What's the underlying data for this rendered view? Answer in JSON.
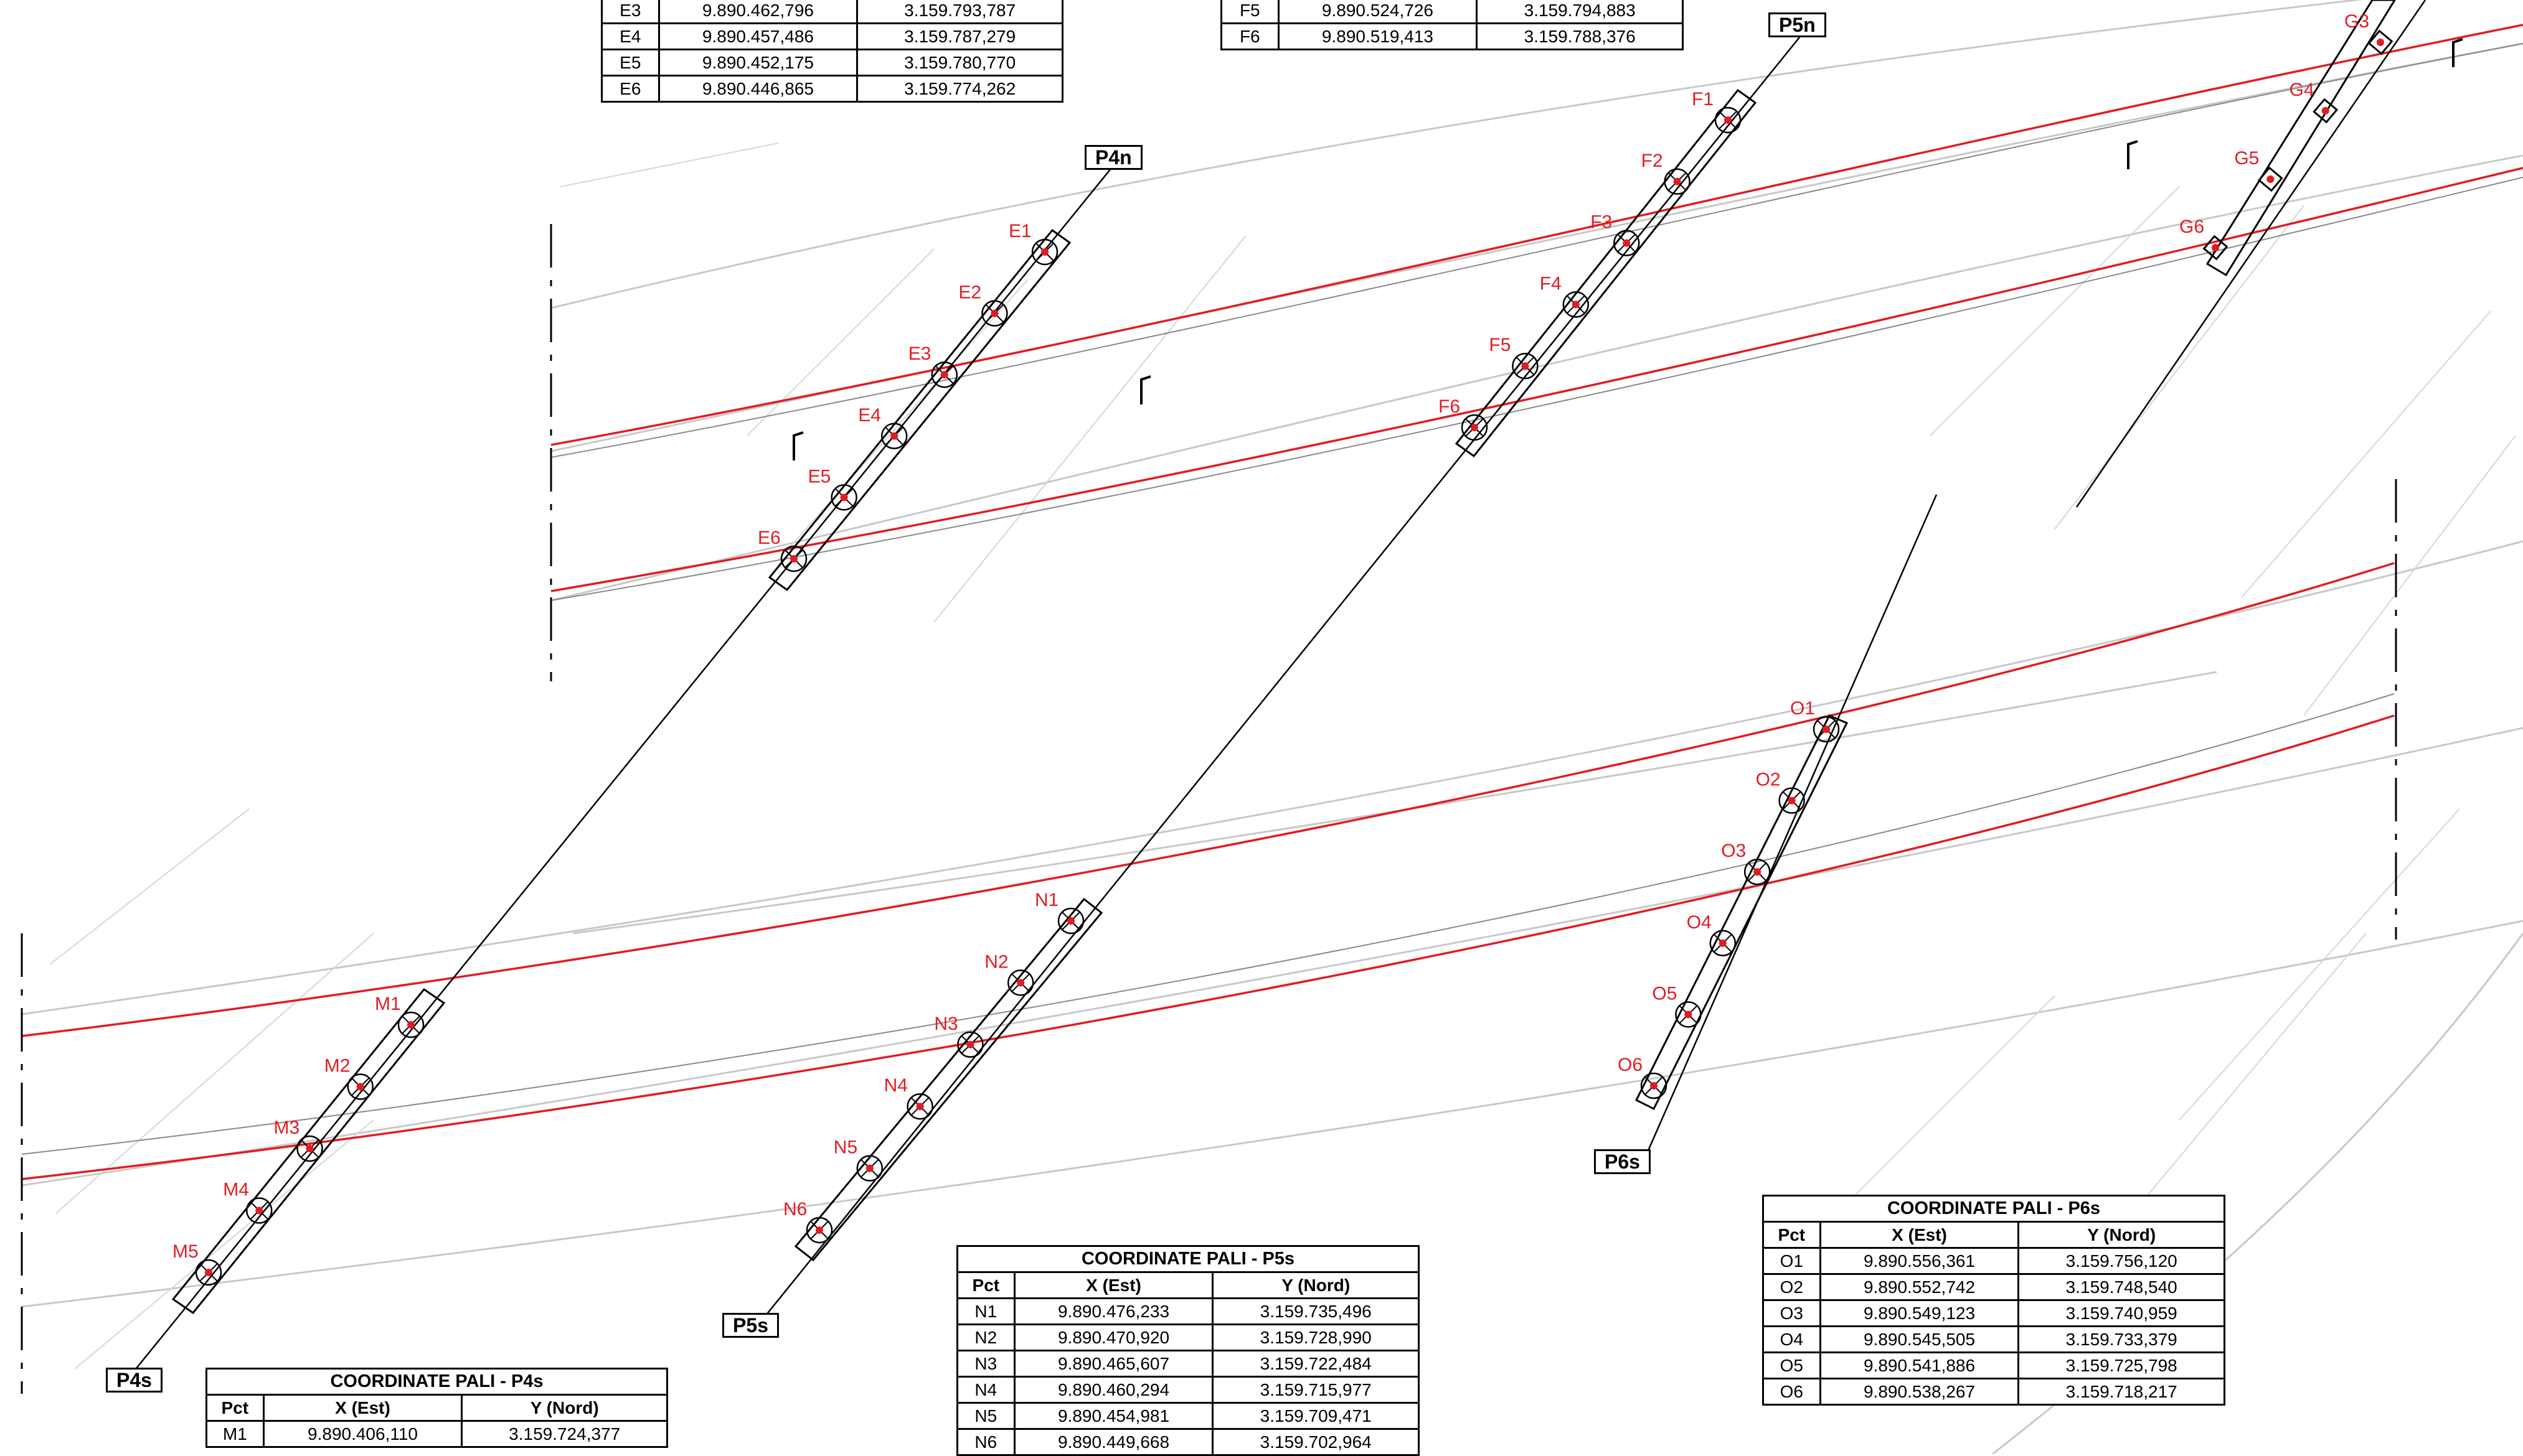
{
  "piles": {
    "E": [
      "E1",
      "E2",
      "E3",
      "E4",
      "E5",
      "E6"
    ],
    "F": [
      "F1",
      "F2",
      "F3",
      "F4",
      "F5",
      "F6"
    ],
    "G": [
      "G3",
      "G4",
      "G5",
      "G6"
    ],
    "M": [
      "M1",
      "M2",
      "M3",
      "M4",
      "M5"
    ],
    "N": [
      "N1",
      "N2",
      "N3",
      "N4",
      "N5",
      "N6"
    ],
    "O": [
      "O1",
      "O2",
      "O3",
      "O4",
      "O5",
      "O6"
    ]
  },
  "section_labels": {
    "P4n": "P4n",
    "P5n": "P5n",
    "P4s": "P4s",
    "P5s": "P5s",
    "P6s": "P6s"
  },
  "tables": {
    "E": {
      "rows": [
        [
          "E3",
          "9.890.462,796",
          "3.159.793,787"
        ],
        [
          "E4",
          "9.890.457,486",
          "3.159.787,279"
        ],
        [
          "E5",
          "9.890.452,175",
          "3.159.780,770"
        ],
        [
          "E6",
          "9.890.446,865",
          "3.159.774,262"
        ]
      ]
    },
    "F": {
      "rows": [
        [
          "F5",
          "9.890.524,726",
          "3.159.794,883"
        ],
        [
          "F6",
          "9.890.519,413",
          "3.159.788,376"
        ]
      ]
    },
    "P4s": {
      "title": "COORDINATE PALI - P4s",
      "headers": [
        "Pct",
        "X (Est)",
        "Y (Nord)"
      ],
      "rows": [
        [
          "M1",
          "9.890.406,110",
          "3.159.724,377"
        ]
      ]
    },
    "P5s": {
      "title": "COORDINATE PALI - P5s",
      "headers": [
        "Pct",
        "X (Est)",
        "Y (Nord)"
      ],
      "rows": [
        [
          "N1",
          "9.890.476,233",
          "3.159.735,496"
        ],
        [
          "N2",
          "9.890.470,920",
          "3.159.728,990"
        ],
        [
          "N3",
          "9.890.465,607",
          "3.159.722,484"
        ],
        [
          "N4",
          "9.890.460,294",
          "3.159.715,977"
        ],
        [
          "N5",
          "9.890.454,981",
          "3.159.709,471"
        ],
        [
          "N6",
          "9.890.449,668",
          "3.159.702,964"
        ]
      ]
    },
    "P6s": {
      "title": "COORDINATE PALI - P6s",
      "headers": [
        "Pct",
        "X (Est)",
        "Y (Nord)"
      ],
      "rows": [
        [
          "O1",
          "9.890.556,361",
          "3.159.756,120"
        ],
        [
          "O2",
          "9.890.552,742",
          "3.159.748,540"
        ],
        [
          "O3",
          "9.890.549,123",
          "3.159.740,959"
        ],
        [
          "O4",
          "9.890.545,505",
          "3.159.733,379"
        ],
        [
          "O5",
          "9.890.541,886",
          "3.159.725,798"
        ],
        [
          "O6",
          "9.890.538,267",
          "3.159.718,217"
        ]
      ]
    }
  },
  "colors": {
    "alignment_red": "#e31b23",
    "ink": "#000000",
    "background_gray": "#c8c8c8"
  }
}
